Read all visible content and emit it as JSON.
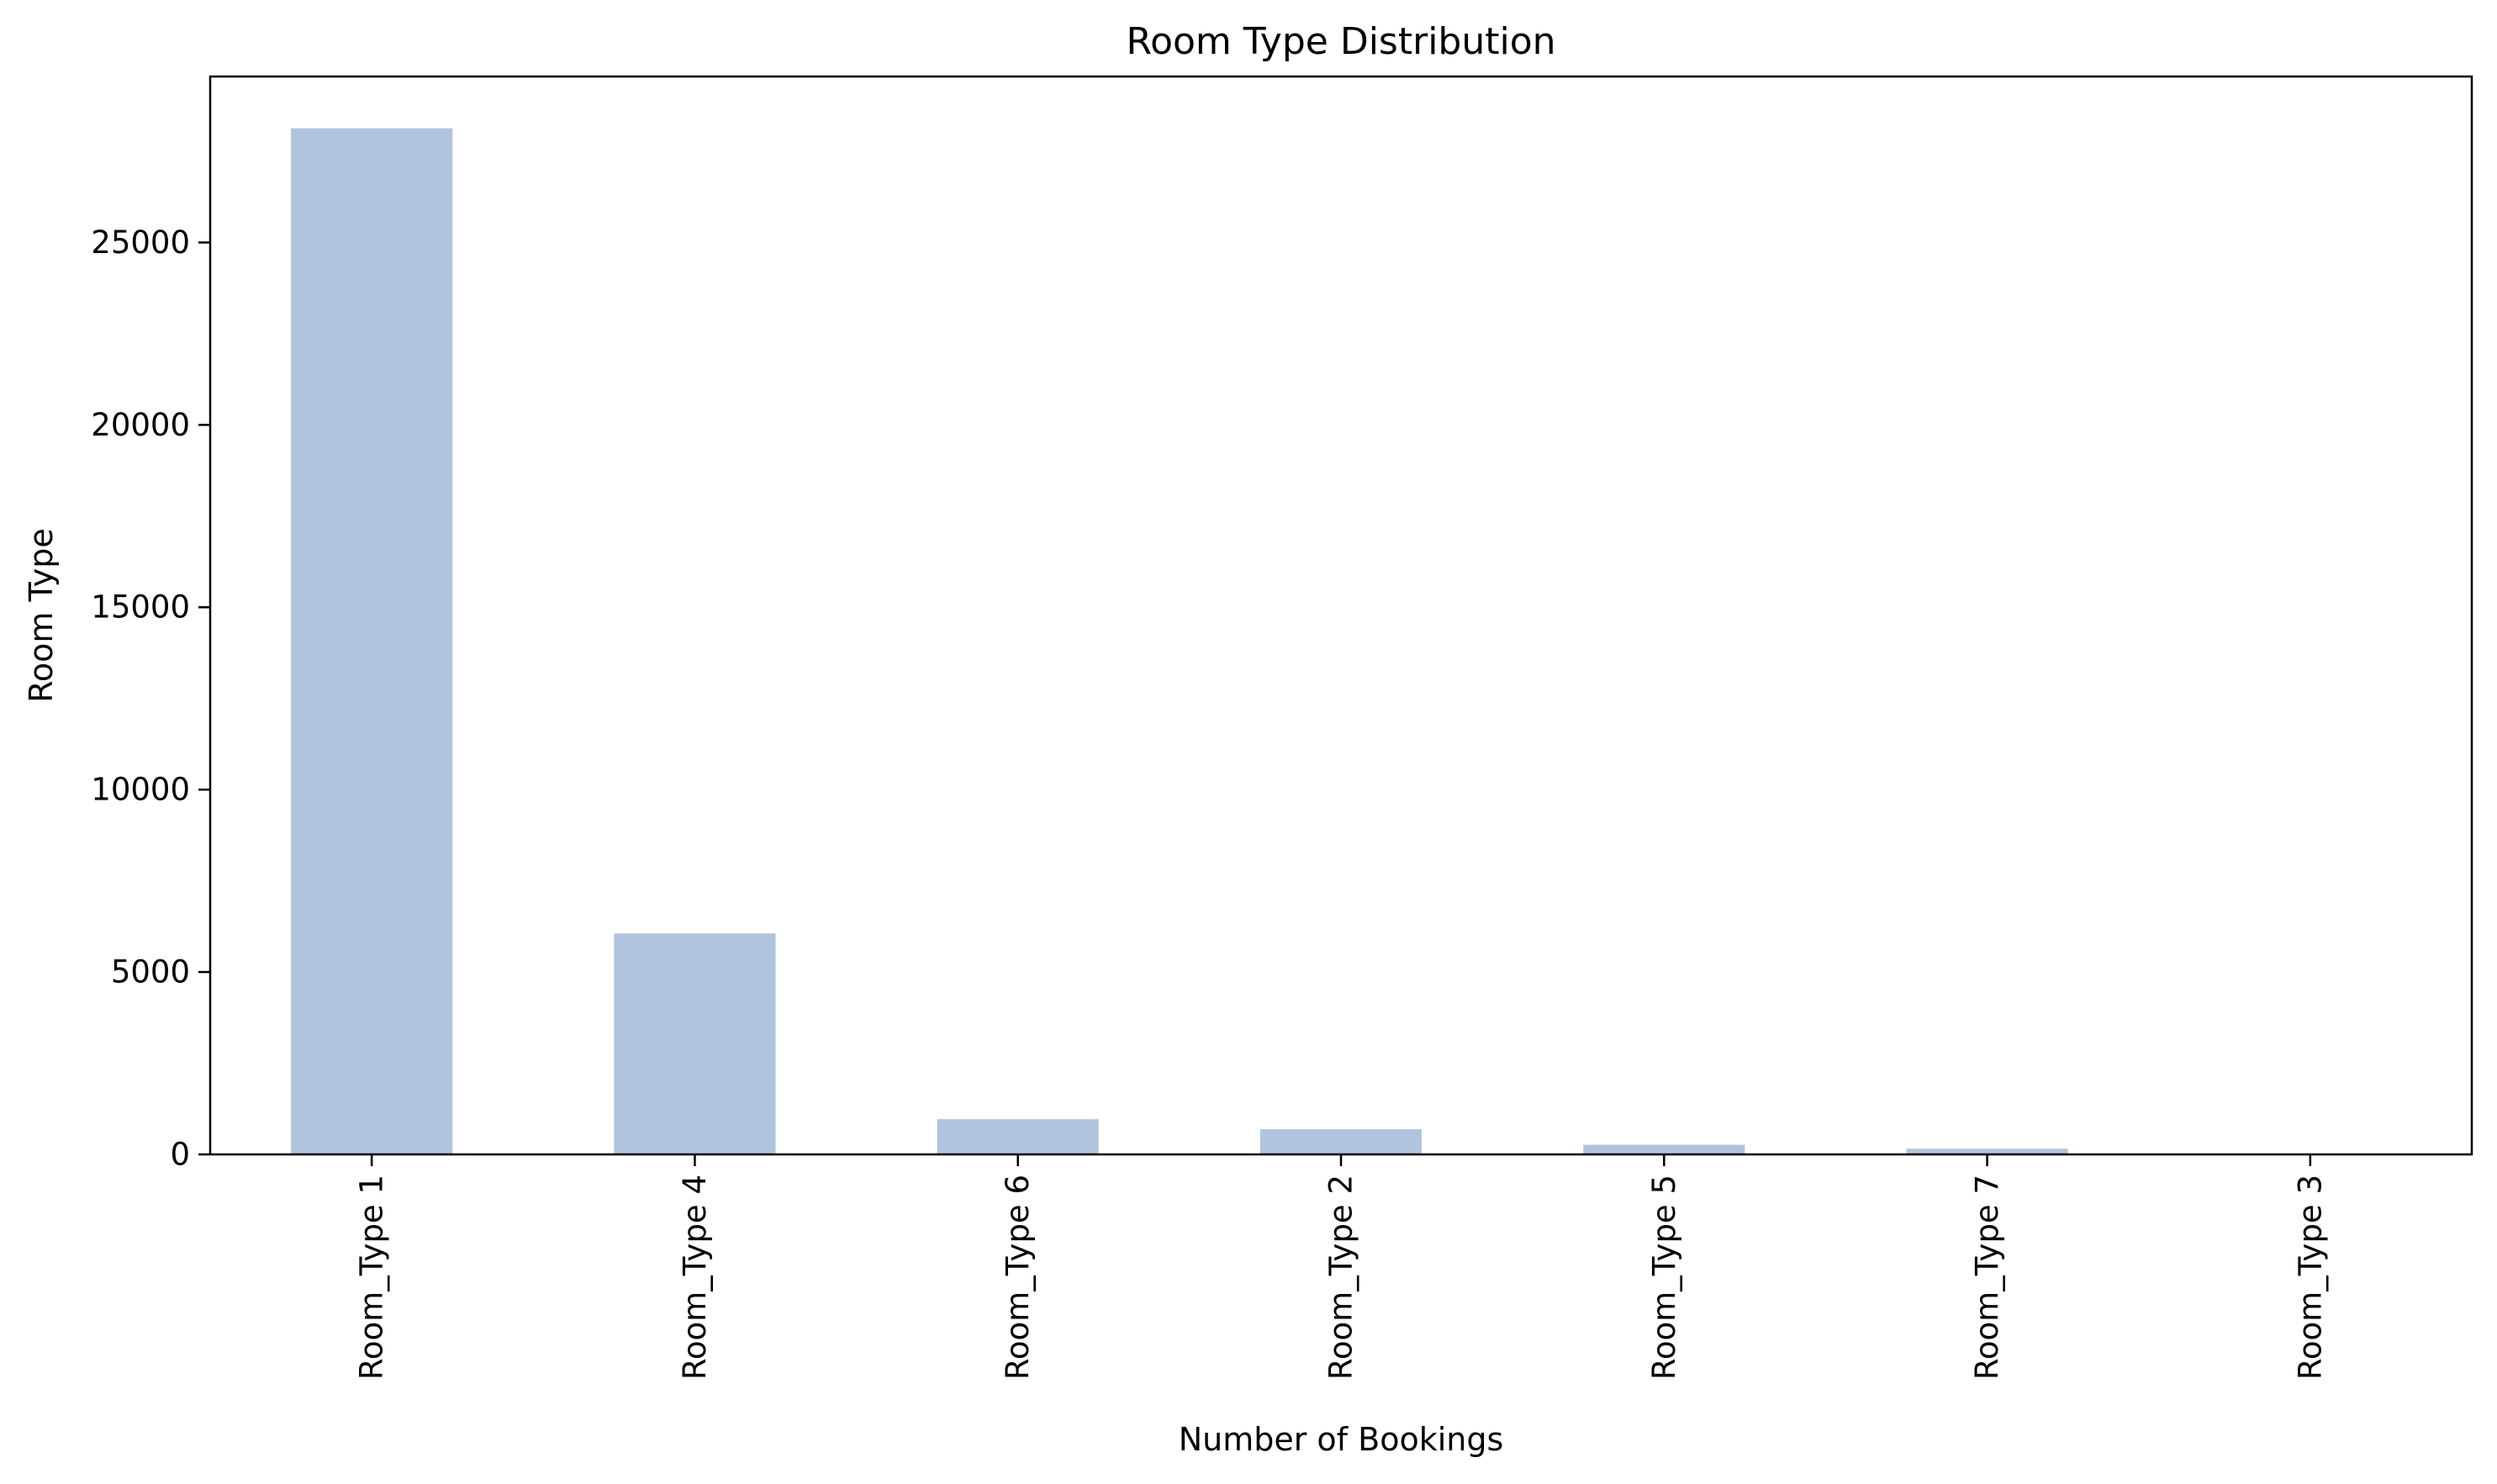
{
  "chart_data": {
    "type": "bar",
    "title": "Room Type Distribution",
    "xlabel": "Number of Bookings",
    "ylabel": "Room Type",
    "categories": [
      "Room_Type 1",
      "Room_Type 4",
      "Room_Type 6",
      "Room_Type 2",
      "Room_Type 5",
      "Room_Type 7",
      "Room_Type 3"
    ],
    "values": [
      28130,
      6057,
      966,
      692,
      265,
      158,
      7
    ],
    "ylim": [
      0,
      29550
    ],
    "yticks": [
      0,
      5000,
      10000,
      15000,
      20000,
      25000
    ],
    "grid": false,
    "legend": "none",
    "colors": {
      "bar": "#b0c4de",
      "axis": "#000000"
    }
  }
}
